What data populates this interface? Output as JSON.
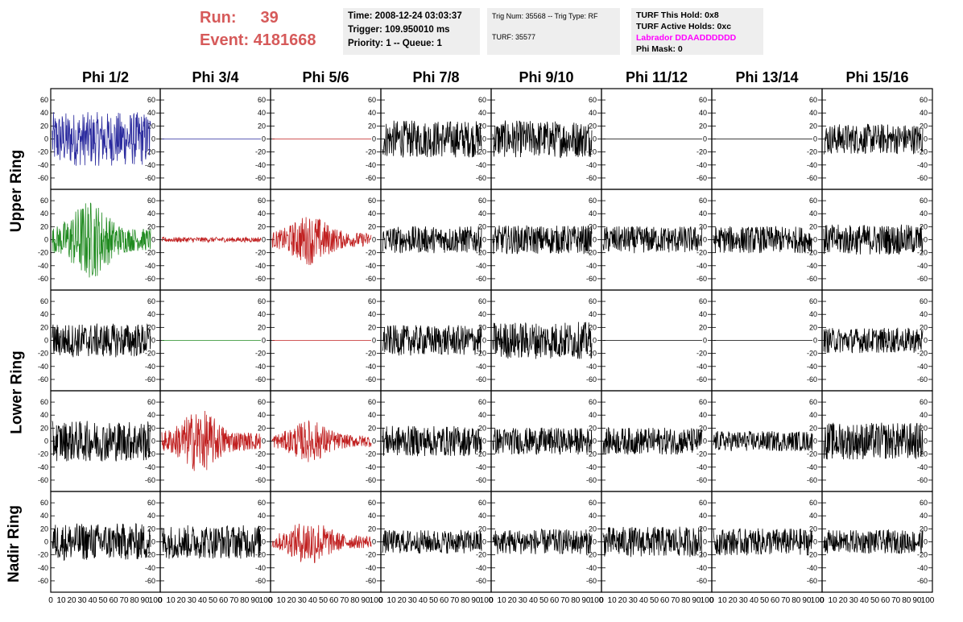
{
  "header": {
    "run_label": "Run:",
    "run_value": "39",
    "event_label": "Event:",
    "event_value": "4181668"
  },
  "info_time": {
    "time": "Time: 2008-12-24 03:03:37",
    "trigger": "Trigger: 109.950010 ms",
    "priority": "Priority: 1 -- Queue: 1"
  },
  "info_trig": {
    "trig": "Trig Num: 35568 -- Trig Type: RF",
    "turf": "TURF: 35577"
  },
  "info_turf": {
    "hold": "TURF This Hold: 0x8",
    "active": "TURF Active Holds: 0xc",
    "labrador": "Labrador DDAADDDDDD",
    "phimask": "Phi Mask: 0"
  },
  "columns": [
    "Phi 1/2",
    "Phi 3/4",
    "Phi 5/6",
    "Phi 7/8",
    "Phi 9/10",
    "Phi 11/12",
    "Phi 13/14",
    "Phi 15/16"
  ],
  "rings": [
    "Upper Ring",
    "Lower Ring",
    "Nadir Ring"
  ],
  "colors": {
    "black": "#000000",
    "blue": "#2b2b9e",
    "green": "#1f8a1f",
    "red": "#c02020",
    "header_red": "#d65a5a",
    "magenta": "#ff00ff"
  },
  "chart_data": {
    "type": "line",
    "x_range": [
      0,
      100
    ],
    "y_range": [
      -70,
      70
    ],
    "y_ticks": [
      -60,
      -40,
      -20,
      0,
      20,
      40,
      60
    ],
    "x_tick_labels": [
      "0",
      "10",
      "20",
      "30",
      "40",
      "50",
      "60",
      "70",
      "80",
      "90",
      "100"
    ],
    "panel_rows": 5,
    "panel_cols": 8,
    "panels": [
      [
        {
          "color": "blue",
          "amp": 32,
          "env": "flat"
        },
        {
          "color": "blue",
          "amp": 0,
          "env": "flat"
        },
        {
          "color": "red",
          "amp": 0,
          "env": "flat"
        },
        {
          "color": "black",
          "amp": 22,
          "env": "flat"
        },
        {
          "color": "black",
          "amp": 22,
          "env": "flat"
        },
        {
          "color": "black",
          "amp": 0,
          "env": "flat"
        },
        {
          "color": "black",
          "amp": 0,
          "env": "flat"
        },
        {
          "color": "black",
          "amp": 18,
          "env": "flat"
        }
      ],
      [
        {
          "color": "green",
          "amp": 38,
          "env": "burst"
        },
        {
          "color": "red",
          "amp": 3,
          "env": "flat"
        },
        {
          "color": "red",
          "amp": 24,
          "env": "burst"
        },
        {
          "color": "black",
          "amp": 16,
          "env": "flat"
        },
        {
          "color": "black",
          "amp": 17,
          "env": "flat"
        },
        {
          "color": "black",
          "amp": 16,
          "env": "flat"
        },
        {
          "color": "black",
          "amp": 16,
          "env": "flat"
        },
        {
          "color": "black",
          "amp": 18,
          "env": "flat"
        }
      ],
      [
        {
          "color": "black",
          "amp": 20,
          "env": "flat"
        },
        {
          "color": "green",
          "amp": 0,
          "env": "flat"
        },
        {
          "color": "red",
          "amp": 0,
          "env": "flat"
        },
        {
          "color": "black",
          "amp": 18,
          "env": "flat"
        },
        {
          "color": "black",
          "amp": 22,
          "env": "flat"
        },
        {
          "color": "black",
          "amp": 0,
          "env": "flat"
        },
        {
          "color": "black",
          "amp": 0,
          "env": "flat"
        },
        {
          "color": "black",
          "amp": 15,
          "env": "flat"
        }
      ],
      [
        {
          "color": "black",
          "amp": 24,
          "env": "flat"
        },
        {
          "color": "red",
          "amp": 30,
          "env": "burst"
        },
        {
          "color": "red",
          "amp": 20,
          "env": "burst"
        },
        {
          "color": "black",
          "amp": 18,
          "env": "flat"
        },
        {
          "color": "black",
          "amp": 16,
          "env": "flat"
        },
        {
          "color": "black",
          "amp": 16,
          "env": "flat"
        },
        {
          "color": "black",
          "amp": 12,
          "env": "flat"
        },
        {
          "color": "black",
          "amp": 22,
          "env": "flat"
        }
      ],
      [
        {
          "color": "black",
          "amp": 22,
          "env": "flat"
        },
        {
          "color": "black",
          "amp": 20,
          "env": "flat"
        },
        {
          "color": "red",
          "amp": 22,
          "env": "burst"
        },
        {
          "color": "black",
          "amp": 14,
          "env": "flat"
        },
        {
          "color": "black",
          "amp": 15,
          "env": "flat"
        },
        {
          "color": "black",
          "amp": 18,
          "env": "flat"
        },
        {
          "color": "black",
          "amp": 16,
          "env": "flat"
        },
        {
          "color": "black",
          "amp": 14,
          "env": "flat"
        }
      ]
    ]
  }
}
